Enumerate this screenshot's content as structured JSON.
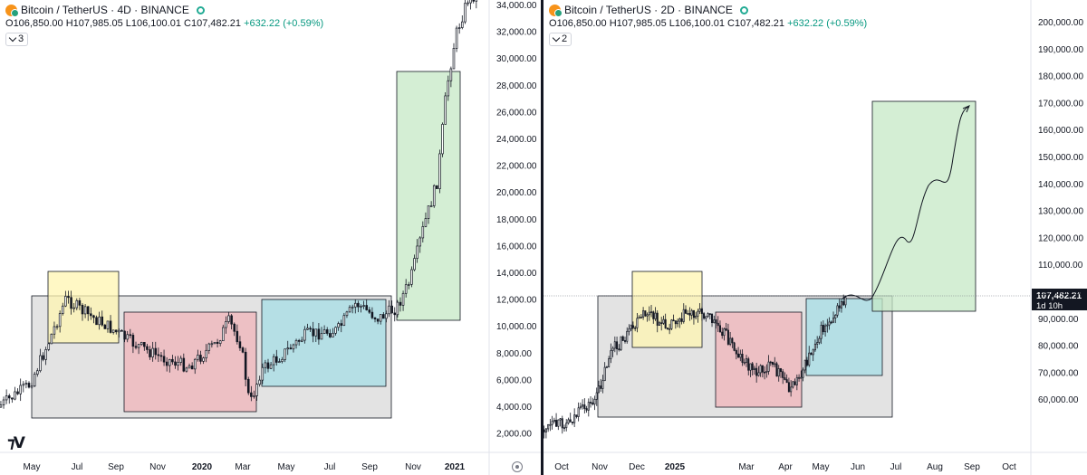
{
  "charts": [
    {
      "title": "Bitcoin / TetherUS · 4D · BINANCE",
      "ohlc": {
        "o_label": "O",
        "o": "106,850.00",
        "h_label": "H",
        "h": "107,985.05",
        "l_label": "L",
        "l": "106,100.01",
        "c_label": "C",
        "c": "107,482.21",
        "change": "+632.22 (+0.59%)"
      },
      "indicators_count": "3",
      "price_axis": [
        "34,000.00",
        "32,000.00",
        "30,000.00",
        "28,000.00",
        "26,000.00",
        "24,000.00",
        "22,000.00",
        "20,000.00",
        "18,000.00",
        "16,000.00",
        "14,000.00",
        "12,000.00",
        "10,000.00",
        "8,000.00",
        "6,000.00",
        "4,000.00",
        "2,000.00"
      ],
      "time_axis": [
        {
          "label": "May",
          "bold": false
        },
        {
          "label": "Jul",
          "bold": false
        },
        {
          "label": "Sep",
          "bold": false
        },
        {
          "label": "Nov",
          "bold": false
        },
        {
          "label": "2020",
          "bold": true
        },
        {
          "label": "Mar",
          "bold": false
        },
        {
          "label": "May",
          "bold": false
        },
        {
          "label": "Jul",
          "bold": false
        },
        {
          "label": "Sep",
          "bold": false
        },
        {
          "label": "Nov",
          "bold": false
        },
        {
          "label": "2021",
          "bold": true
        }
      ]
    },
    {
      "title": "Bitcoin / TetherUS · 2D · BINANCE",
      "ohlc": {
        "o_label": "O",
        "o": "106,850.00",
        "h_label": "H",
        "h": "107,985.05",
        "l_label": "L",
        "l": "106,100.01",
        "c_label": "C",
        "c": "107,482.21",
        "change": "+632.22 (+0.59%)"
      },
      "indicators_count": "2",
      "price_axis": [
        "200,000.00",
        "190,000.00",
        "180,000.00",
        "170,000.00",
        "160,000.00",
        "150,000.00",
        "140,000.00",
        "130,000.00",
        "120,000.00",
        "110,000.00",
        "100,000.00",
        "90,000.00",
        "80,000.00",
        "70,000.00",
        "60,000.00"
      ],
      "last_price": {
        "value": "107,482.21",
        "countdown": "1d 10h"
      },
      "time_axis": [
        {
          "label": "Oct",
          "bold": false
        },
        {
          "label": "Nov",
          "bold": false
        },
        {
          "label": "Dec",
          "bold": false
        },
        {
          "label": "2025",
          "bold": true
        },
        {
          "label": "Mar",
          "bold": false
        },
        {
          "label": "Apr",
          "bold": false
        },
        {
          "label": "May",
          "bold": false
        },
        {
          "label": "Jun",
          "bold": false
        },
        {
          "label": "Jul",
          "bold": false
        },
        {
          "label": "Aug",
          "bold": false
        },
        {
          "label": "Sep",
          "bold": false
        },
        {
          "label": "Oct",
          "bold": false
        }
      ]
    }
  ],
  "colors": {
    "up": "#089981",
    "candle": "#131722",
    "zone_gray": "#d9d9d9",
    "zone_yellow": "#fff5b1",
    "zone_red": "#f0b4b9",
    "zone_blue": "#a6dde6",
    "zone_green": "#c5e8c5"
  }
}
